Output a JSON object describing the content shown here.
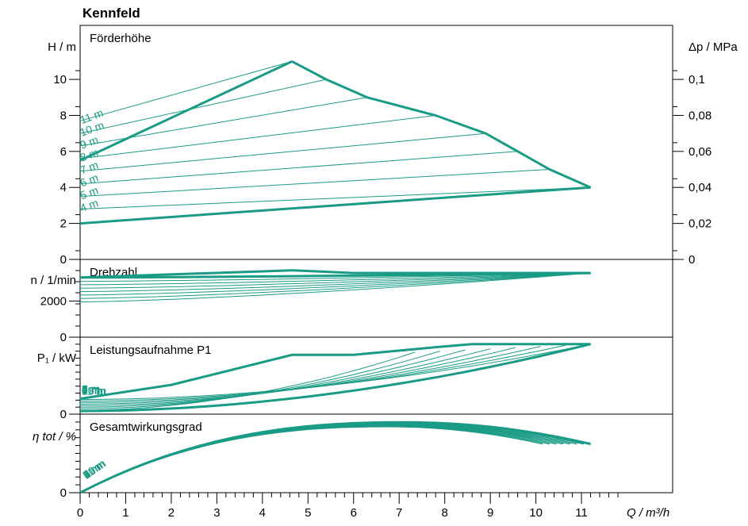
{
  "title": "Kennfeld",
  "colors": {
    "curve": "#1a9b85",
    "axis": "#000000",
    "background": "#ffffff"
  },
  "chart_data": [
    {
      "type": "line",
      "panel": "head",
      "title": "Förderhöhe",
      "ylabel": "H / m",
      "ylabel_right": "Δp / MPa",
      "xlim": [
        0,
        13
      ],
      "ylim": [
        0,
        13
      ],
      "yticks": [
        0,
        2,
        4,
        6,
        8,
        10
      ],
      "right_ticks": [
        "0",
        "0,02",
        "0,04",
        "0,06",
        "0,08",
        "0,1"
      ],
      "series": [
        {
          "name": "4 m",
          "x": [
            0,
            11.2
          ],
          "y": [
            4.0,
            4.0
          ],
          "label_y": 2.8
        },
        {
          "name": "5 m",
          "x": [
            0,
            10.3
          ],
          "y": [
            5.0,
            5.0
          ],
          "label_y": 3.5
        },
        {
          "name": "6 m",
          "x": [
            0,
            9.6
          ],
          "y": [
            6.0,
            6.0
          ],
          "label_y": 4.2
        },
        {
          "name": "7 m",
          "x": [
            0,
            8.9
          ],
          "y": [
            7.0,
            7.0
          ],
          "label_y": 4.9
        },
        {
          "name": "8 m",
          "x": [
            0,
            7.8
          ],
          "y": [
            8.0,
            8.0
          ],
          "label_y": 5.6
        },
        {
          "name": "9 m",
          "x": [
            0,
            6.3
          ],
          "y": [
            9.0,
            9.0
          ],
          "label_y": 6.3
        },
        {
          "name": "10 m",
          "x": [
            0,
            5.4
          ],
          "y": [
            10.0,
            10.0
          ],
          "label_y": 7.0
        },
        {
          "name": "11 m",
          "x": [
            0,
            4.65
          ],
          "y": [
            11.0,
            11.0
          ],
          "label_y": 7.7
        }
      ],
      "lower_bound": {
        "x": [
          0,
          11.2
        ],
        "y": [
          2.0,
          4.0
        ]
      },
      "upper_bound": {
        "x": [
          0,
          4.65
        ],
        "y": [
          5.5,
          11.0
        ]
      },
      "envelope": {
        "x": [
          4.65,
          5.4,
          6.3,
          7.8,
          8.9,
          9.6,
          10.3,
          11.2
        ],
        "y": [
          11.0,
          10.0,
          9.0,
          8.0,
          7.0,
          6.0,
          5.0,
          4.0
        ]
      }
    },
    {
      "type": "line",
      "panel": "speed",
      "title": "Drehzahl",
      "ylabel": "n / 1/min",
      "ylim": [
        0,
        4300
      ],
      "yticks": [
        0,
        2000
      ],
      "series": [
        {
          "name": "4 m",
          "start": 1950
        },
        {
          "name": "5 m",
          "start": 2140
        },
        {
          "name": "6 m",
          "start": 2330
        },
        {
          "name": "7 m",
          "start": 2520
        },
        {
          "name": "8 m",
          "start": 2710
        },
        {
          "name": "9 m",
          "start": 2900
        },
        {
          "name": "10 m",
          "start": 3090
        },
        {
          "name": "11 m",
          "start": 3300
        }
      ],
      "max_speed": 3700,
      "end_speed": 3550
    },
    {
      "type": "line",
      "panel": "power",
      "title": "Leistungsaufnahme P1",
      "ylabel": "P₁ / kW",
      "ylim": [
        0,
        1
      ],
      "yticks": [
        0
      ],
      "y_unlabeled_ticks": 10,
      "series": [
        {
          "name": "4 m",
          "start": 0.05
        },
        {
          "name": "5 m",
          "start": 0.07
        },
        {
          "name": "6 m",
          "start": 0.09
        },
        {
          "name": "7 m",
          "start": 0.11
        },
        {
          "name": "8 m",
          "start": 0.13
        },
        {
          "name": "9 m",
          "start": 0.15
        },
        {
          "name": "10 m",
          "start": 0.17
        },
        {
          "name": "11 m",
          "start": 0.19
        }
      ],
      "upper_bound": {
        "x": [
          0,
          2,
          4.65,
          6.0,
          7.8,
          8.6,
          11.2
        ],
        "y": [
          0.2,
          0.38,
          0.77,
          0.77,
          0.87,
          0.91,
          0.91
        ]
      }
    },
    {
      "type": "line",
      "panel": "efficiency",
      "title": "Gesamtwirkungsgrad",
      "ylabel": "η tot / %",
      "ylim": [
        0,
        1
      ],
      "yticks": [
        0
      ],
      "series": [
        {
          "name": "4 m"
        },
        {
          "name": "5 m"
        },
        {
          "name": "6 m"
        },
        {
          "name": "7 m"
        },
        {
          "name": "8 m"
        },
        {
          "name": "9 m"
        },
        {
          "name": "10 m"
        },
        {
          "name": "11 m"
        }
      ]
    }
  ],
  "x_axis": {
    "label": "Q / m³/h",
    "ticks": [
      0,
      1,
      2,
      3,
      4,
      5,
      6,
      7,
      8,
      9,
      10,
      11
    ],
    "xlim": [
      0,
      13
    ]
  }
}
